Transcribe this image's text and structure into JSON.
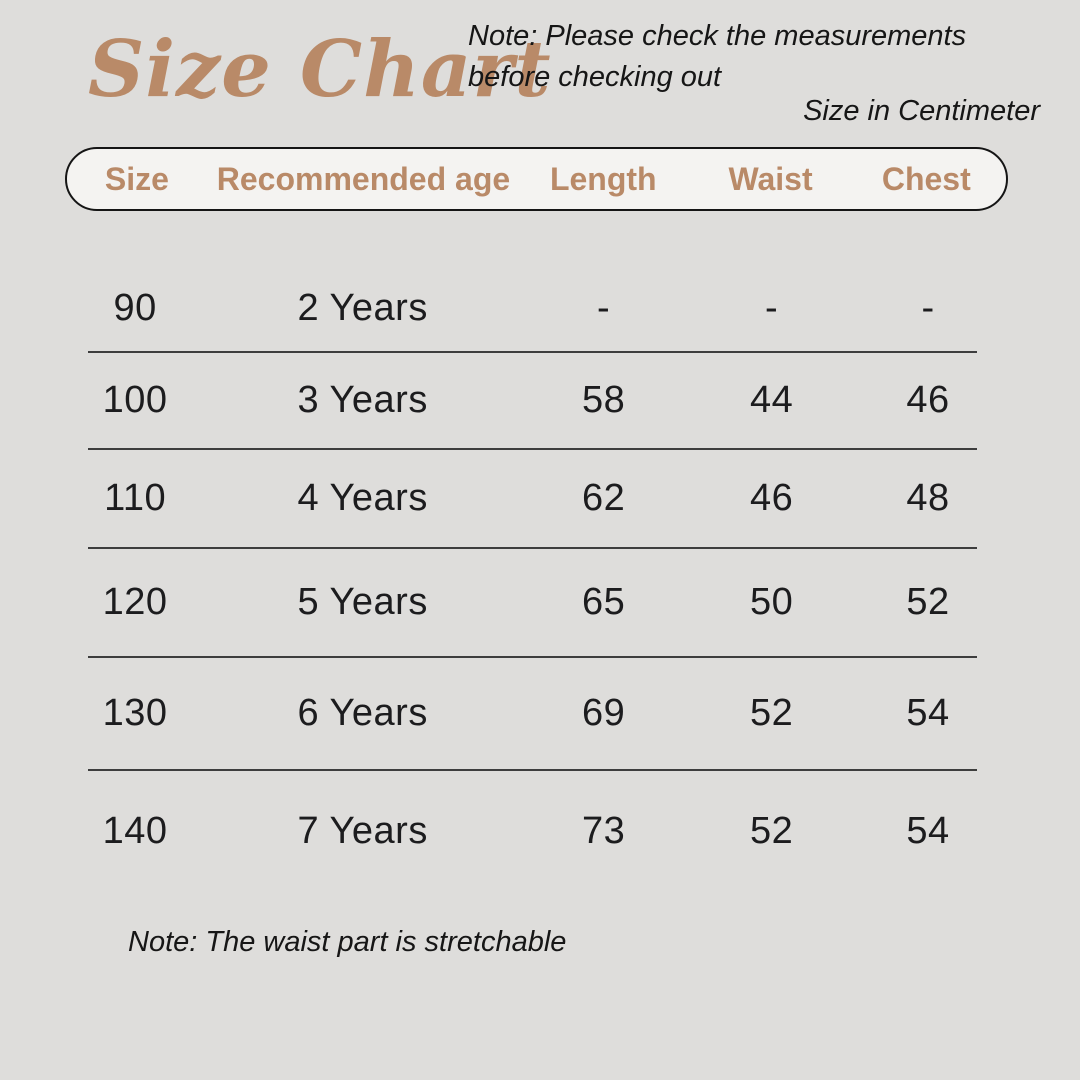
{
  "title": "Size Chart",
  "notes": {
    "top": "Note: Please check the measurements before checking out",
    "unit": "Size in Centimeter",
    "bottom": "Note: The waist part is stretchable"
  },
  "table": {
    "columns": [
      "Size",
      "Recommended age",
      "Length",
      "Waist",
      "Chest"
    ],
    "rows": [
      [
        "90",
        "2 Years",
        "-",
        "-",
        "-"
      ],
      [
        "100",
        "3 Years",
        "58",
        "44",
        "46"
      ],
      [
        "110",
        "4 Years",
        "62",
        "46",
        "48"
      ],
      [
        "120",
        "5 Years",
        "65",
        "50",
        "52"
      ],
      [
        "130",
        "6 Years",
        "69",
        "52",
        "54"
      ],
      [
        "140",
        "7 Years",
        "73",
        "52",
        "54"
      ]
    ]
  },
  "colors": {
    "bg": "#dedddb",
    "accent": "#b98a68",
    "pill_background": "#f4f3f1",
    "pill_border": "#151515",
    "text": "#1c1c1e",
    "divider": "#3d3d3d"
  }
}
